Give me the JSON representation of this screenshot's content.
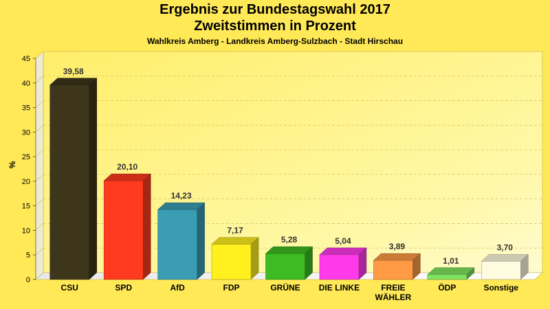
{
  "chart_data": {
    "type": "bar",
    "title": "Ergebnis zur Bundestagswahl 2017",
    "title2": "Zweitstimmen in Prozent",
    "subtitle": "Wahlkreis Amberg - Landkreis Amberg-Sulzbach - Stadt Hirschau",
    "ylabel": "%",
    "ylim": [
      0,
      45
    ],
    "yticks": [
      0,
      5,
      10,
      15,
      20,
      25,
      30,
      35,
      40,
      45
    ],
    "grid": true,
    "categories": [
      "CSU",
      "SPD",
      "AfD",
      "FDP",
      "GRÜNE",
      "DIE LINKE",
      "FREIE WÄHLER",
      "ÖDP",
      "Sonstige"
    ],
    "category_lines": [
      [
        "CSU"
      ],
      [
        "SPD"
      ],
      [
        "AfD"
      ],
      [
        "FDP"
      ],
      [
        "GRÜNE"
      ],
      [
        "DIE LINKE"
      ],
      [
        "FREIE",
        "WÄHLER"
      ],
      [
        "ÖDP"
      ],
      [
        "Sonstige"
      ]
    ],
    "values": [
      39.58,
      20.1,
      14.23,
      7.17,
      5.28,
      5.04,
      3.89,
      1.01,
      3.7
    ],
    "value_labels": [
      "39,58",
      "20,10",
      "14,23",
      "7,17",
      "5,28",
      "5,04",
      "3,89",
      "1,01",
      "3,70"
    ],
    "colors": [
      "#3D361A",
      "#FF3A1E",
      "#3A9DB3",
      "#FFF01E",
      "#3DBB22",
      "#FF3AEA",
      "#FF9A45",
      "#80E45F",
      "#FFFBE0"
    ]
  }
}
